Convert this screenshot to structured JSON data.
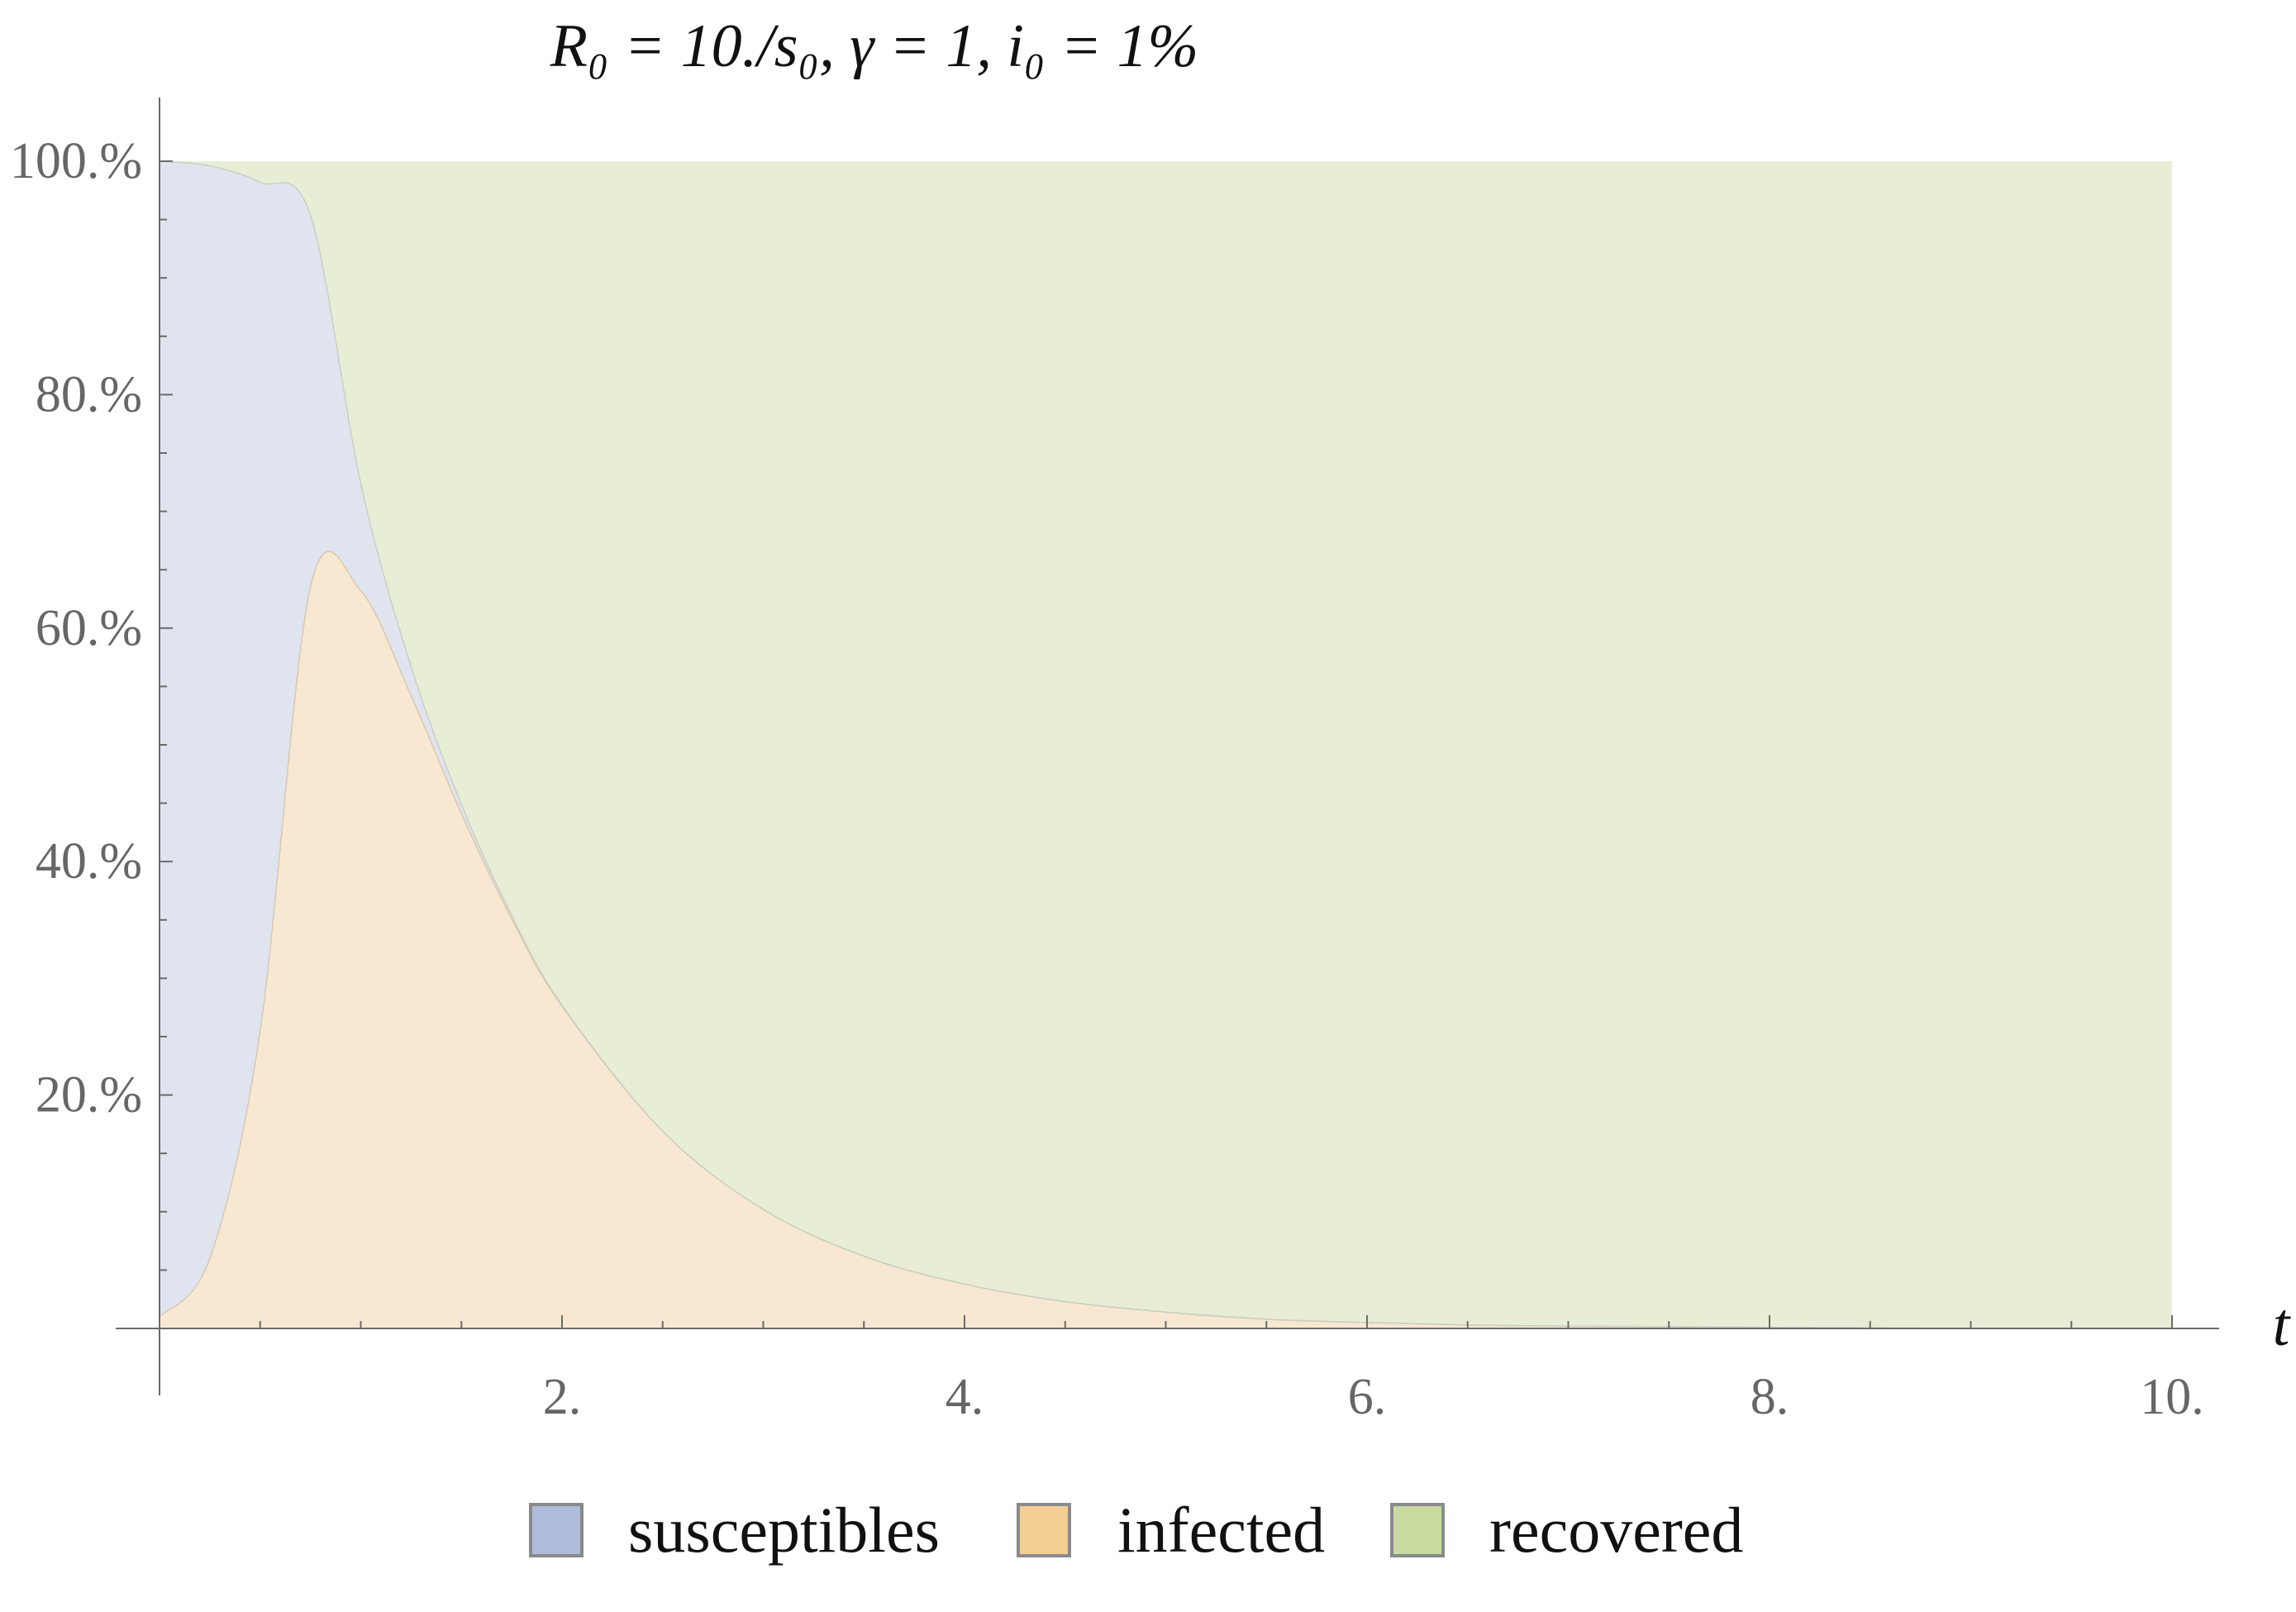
{
  "chart_data": {
    "type": "area",
    "stacked": true,
    "title": "R₀ = 10./s₀,  γ = 1,  i₀ = 1%",
    "xlabel": "t",
    "ylabel": "",
    "xlim": [
      0,
      10
    ],
    "ylim": [
      0,
      100
    ],
    "x_ticks": [
      2,
      4,
      6,
      8,
      10
    ],
    "x_tick_labels": [
      "2.",
      "4.",
      "6.",
      "8.",
      "10."
    ],
    "y_ticks": [
      20,
      40,
      60,
      80,
      100
    ],
    "y_tick_labels": [
      "20.%",
      "40.%",
      "60.%",
      "80.%",
      "100.%"
    ],
    "grid": false,
    "legend_position": "bottom",
    "x": [
      0,
      0.25,
      0.5,
      0.75,
      1,
      1.25,
      1.5,
      1.75,
      2,
      2.5,
      3,
      3.5,
      4,
      4.5,
      5,
      5.5,
      6,
      6.5,
      7,
      8,
      9,
      10
    ],
    "series": [
      {
        "name": "susceptibles",
        "color": "#dfe4ee",
        "legend_color": "#aebcda",
        "values": [
          99,
          93.6,
          72.7,
          31.9,
          9.2,
          2.5,
          0.8,
          0.3,
          0.1,
          0,
          0,
          0,
          0,
          0,
          0,
          0,
          0,
          0,
          0,
          0,
          0,
          0
        ]
      },
      {
        "name": "infected",
        "color": "#f8e8d1",
        "legend_color": "#f3cf96",
        "values": [
          1,
          6,
          25.5,
          63.5,
          63.2,
          54.2,
          44.1,
          35.1,
          27.6,
          16.9,
          10.2,
          6.2,
          3.8,
          2.3,
          1.4,
          0.8,
          0.5,
          0.3,
          0.2,
          0.1,
          0,
          0
        ]
      },
      {
        "name": "recovered",
        "color": "#e8eed6",
        "legend_color": "#c9dba0",
        "values": [
          0,
          0.4,
          1.8,
          4.6,
          27.6,
          43.3,
          55.1,
          64.6,
          72.3,
          83.1,
          89.8,
          93.8,
          96.2,
          97.7,
          98.6,
          99.2,
          99.5,
          99.7,
          99.8,
          99.9,
          100,
          100
        ]
      }
    ]
  }
}
